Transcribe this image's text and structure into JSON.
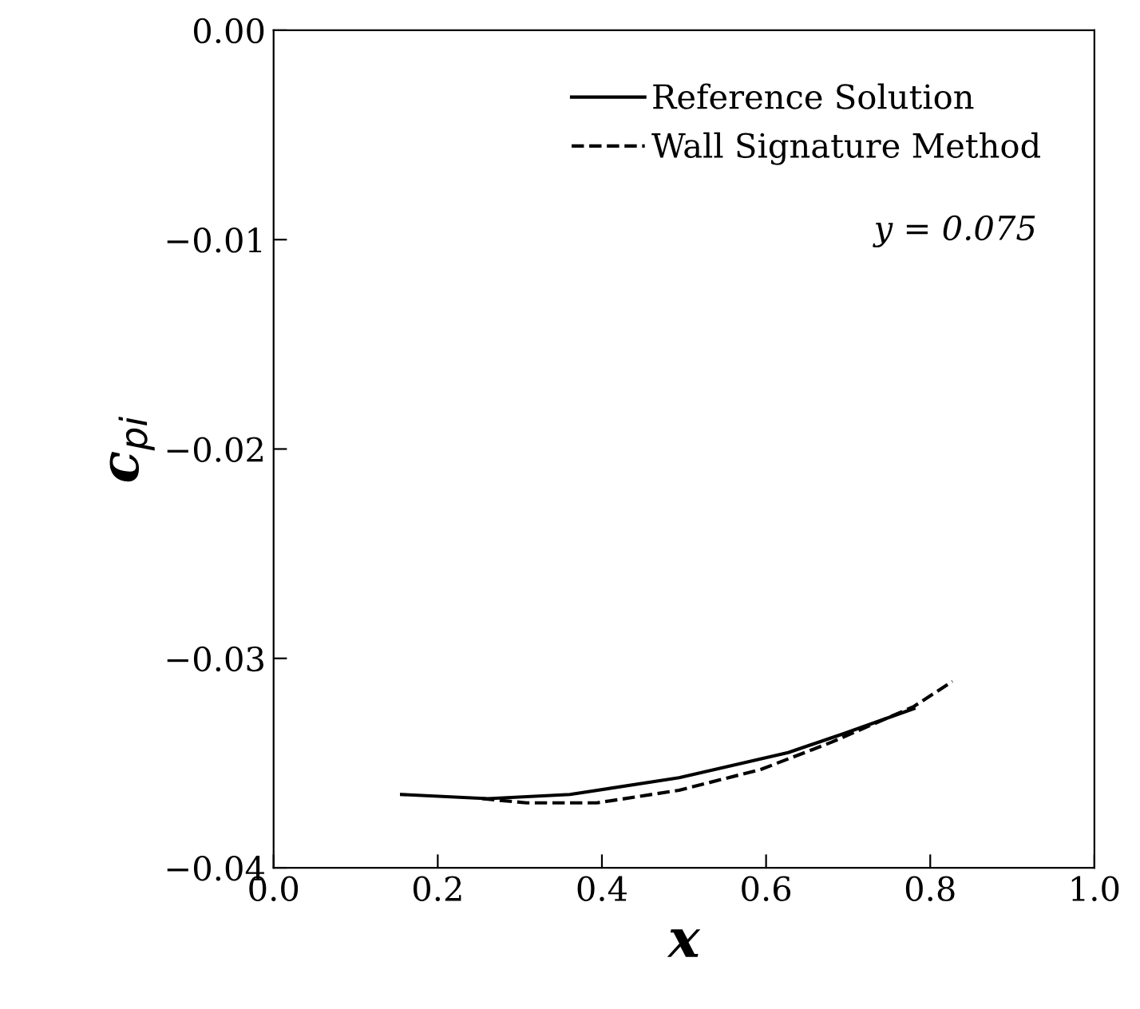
{
  "chart_data": {
    "type": "line",
    "xlabel": "x",
    "ylabel": "c$_{pi}$",
    "xlim": [
      0.0,
      1.0
    ],
    "ylim": [
      -0.04,
      0.0
    ],
    "xticks": [
      {
        "value": 0.0,
        "label": "0.0"
      },
      {
        "value": 0.2,
        "label": "0.2"
      },
      {
        "value": 0.4,
        "label": "0.4"
      },
      {
        "value": 0.6,
        "label": "0.6"
      },
      {
        "value": 0.8,
        "label": "0.8"
      },
      {
        "value": 1.0,
        "label": "1.0"
      }
    ],
    "yticks": [
      {
        "value": -0.04,
        "label": "−0.04"
      },
      {
        "value": -0.03,
        "label": "−0.03"
      },
      {
        "value": -0.02,
        "label": "−0.02"
      },
      {
        "value": -0.01,
        "label": "−0.01"
      },
      {
        "value": 0.0,
        "label": "0.00"
      }
    ],
    "grid": false,
    "legend": "top right",
    "annotations": [
      "y = 0.075"
    ],
    "series": [
      {
        "name": "Reference Solution",
        "color": "#000000",
        "line_style": "solid",
        "x": [
          0.156,
          0.261,
          0.361,
          0.494,
          0.627,
          0.694,
          0.78
        ],
        "values": [
          -0.0365,
          -0.0367,
          -0.0365,
          -0.0357,
          -0.0345,
          -0.0336,
          -0.0324
        ]
      },
      {
        "name": "Wall Signature Method",
        "color": "#000000",
        "line_style": "dashed",
        "x": [
          0.254,
          0.308,
          0.394,
          0.494,
          0.594,
          0.68,
          0.78,
          0.827
        ],
        "values": [
          -0.0367,
          -0.0369,
          -0.0369,
          -0.0363,
          -0.0353,
          -0.034,
          -0.0323,
          -0.0311
        ]
      }
    ]
  }
}
